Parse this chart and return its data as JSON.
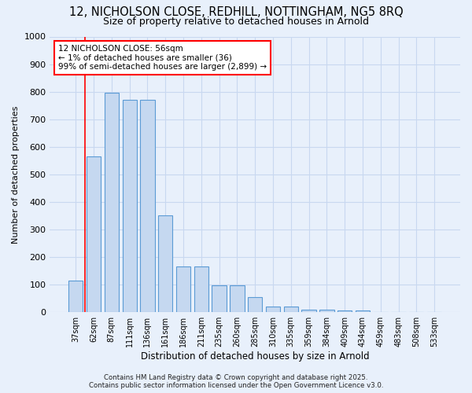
{
  "title_line1": "12, NICHOLSON CLOSE, REDHILL, NOTTINGHAM, NG5 8RQ",
  "title_line2": "Size of property relative to detached houses in Arnold",
  "xlabel": "Distribution of detached houses by size in Arnold",
  "ylabel": "Number of detached properties",
  "categories": [
    "37sqm",
    "62sqm",
    "87sqm",
    "111sqm",
    "136sqm",
    "161sqm",
    "186sqm",
    "211sqm",
    "235sqm",
    "260sqm",
    "285sqm",
    "310sqm",
    "335sqm",
    "359sqm",
    "384sqm",
    "409sqm",
    "434sqm",
    "459sqm",
    "483sqm",
    "508sqm",
    "533sqm"
  ],
  "values": [
    115,
    565,
    795,
    770,
    770,
    350,
    165,
    165,
    97,
    97,
    55,
    20,
    20,
    10,
    10,
    7,
    7,
    0,
    0,
    0,
    0
  ],
  "bar_color": "#c5d8f0",
  "bar_edge_color": "#5b9bd5",
  "annotation_text": "12 NICHOLSON CLOSE: 56sqm\n← 1% of detached houses are smaller (36)\n99% of semi-detached houses are larger (2,899) →",
  "annotation_box_color": "white",
  "annotation_box_edge": "red",
  "ylim": [
    0,
    1000
  ],
  "yticks": [
    0,
    100,
    200,
    300,
    400,
    500,
    600,
    700,
    800,
    900,
    1000
  ],
  "background_color": "#e8f0fb",
  "grid_color": "#c8d8f0",
  "footer_line1": "Contains HM Land Registry data © Crown copyright and database right 2025.",
  "footer_line2": "Contains public sector information licensed under the Open Government Licence v3.0."
}
